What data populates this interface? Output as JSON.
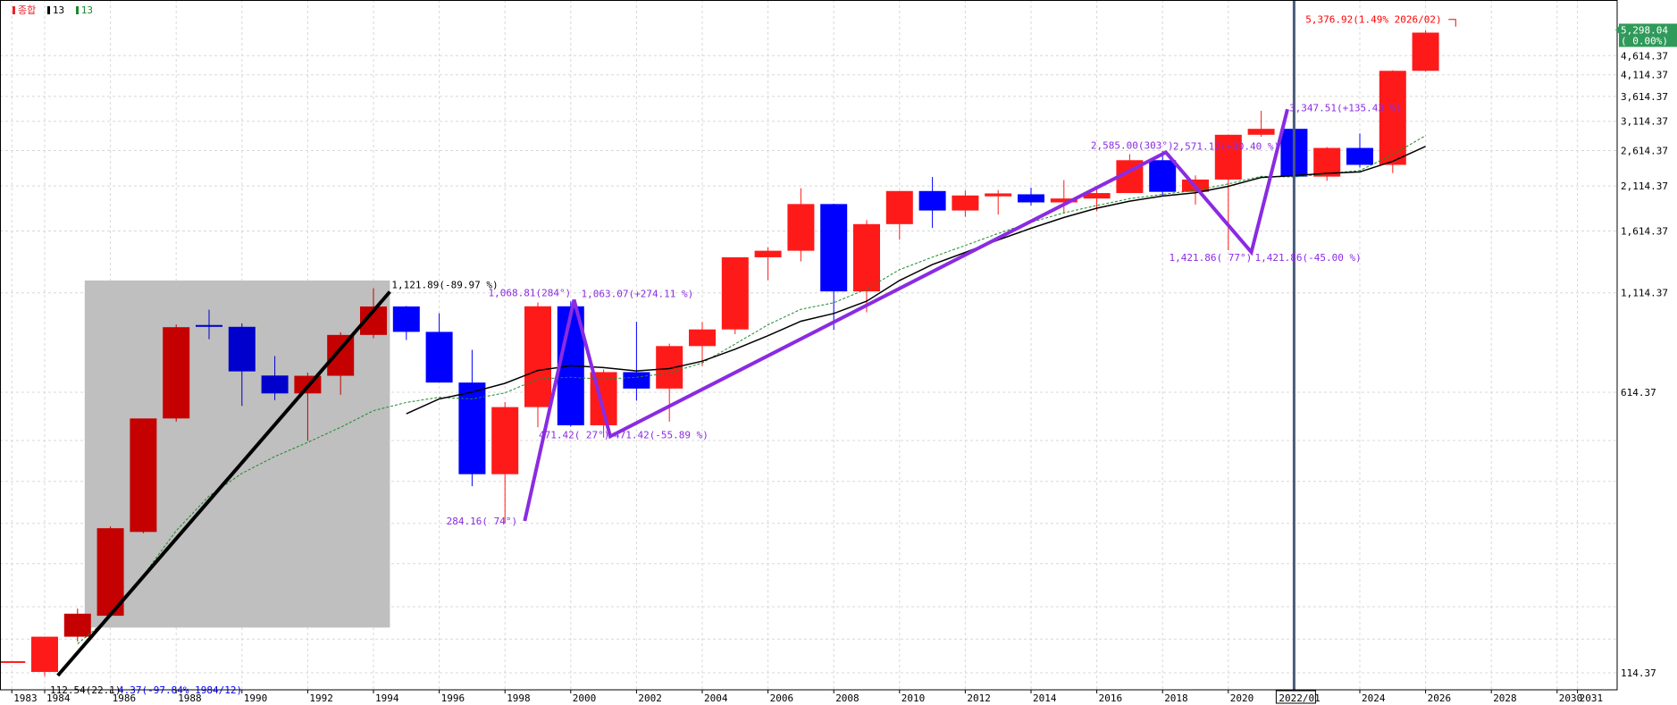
{
  "legend": {
    "title": "종합",
    "ma1": "13",
    "ma2": "13",
    "title_color": "#e8242c",
    "ma1_color": "#000000",
    "ma2_color": "#1a8a2a"
  },
  "price_box": {
    "price": "5,298.04",
    "change": "( 0.00%)",
    "bg": "#2f9a5a"
  },
  "selected_label": "2022/01",
  "colors": {
    "up": "#ff1a1a",
    "up_dark": "#c40000",
    "down": "#0000ff",
    "down_dark": "#0000cc",
    "zigzag": "#8a2be2",
    "grid": "#d8d8d8"
  },
  "annotations": [
    {
      "text": "5,376.92(1.49% 2026/02)",
      "color": "#ff0000",
      "year": 2026.1,
      "value": 5376.92
    },
    {
      "text": "1,121.89(-89.97 %)",
      "color": "#000000",
      "year": 1994.5,
      "value": 1121.89
    },
    {
      "text": "112.54(22.1)",
      "color": "#000000",
      "year": 1984.0,
      "value": 112.54
    },
    {
      "text": "4.37(-97.84% 1984/12)",
      "color": "#0000ff",
      "year": 1984.0,
      "value": 112.54
    },
    {
      "text": "1,068.81(284°)",
      "color": "#8a2be2",
      "year": 2000.1,
      "value": 1068.81
    },
    {
      "text": "1,063.07(+274.11 %)",
      "color": "#8a2be2",
      "year": 2000.1,
      "value": 1063.07
    },
    {
      "text": "471.42( 27°)",
      "color": "#8a2be2",
      "year": 2001.2,
      "value": 471.42
    },
    {
      "text": "471.42(-55.89 %)",
      "color": "#8a2be2",
      "year": 2001.2,
      "value": 471.42
    },
    {
      "text": "284.16( 74°)",
      "color": "#8a2be2",
      "year": 1998.5,
      "value": 284.16
    },
    {
      "text": "2,585.00(303°)",
      "color": "#8a2be2",
      "year": 2018.1,
      "value": 2585.0
    },
    {
      "text": "2,571.12(+80.40 %)",
      "color": "#8a2be2",
      "year": 2018.1,
      "value": 2571.12
    },
    {
      "text": "1,421.86( 77°)",
      "color": "#8a2be2",
      "year": 2020.7,
      "value": 1421.86
    },
    {
      "text": "1,421.86(-45.00 %)",
      "color": "#8a2be2",
      "year": 2020.7,
      "value": 1421.86
    },
    {
      "text": "3,347.51(+135.43 %)",
      "color": "#8a2be2",
      "year": 2021.8,
      "value": 3347.51
    }
  ],
  "chart_data": {
    "type": "candlestick",
    "title": "종합",
    "xlabel": "",
    "ylabel": "",
    "x_axis_ticks": [
      "1983",
      "1984",
      "1986",
      "1988",
      "1990",
      "1992",
      "1994",
      "1996",
      "1998",
      "2000",
      "2002",
      "2004",
      "2006",
      "2008",
      "2010",
      "2012",
      "2014",
      "2016",
      "2018",
      "2020",
      "2022/01",
      "2024",
      "2026",
      "2028",
      "2030",
      "2031"
    ],
    "y_axis_ticks": [
      114.37,
      614.37,
      1114.37,
      1614.37,
      2114.37,
      2614.37,
      3114.37,
      3614.37,
      4114.37,
      4614.37
    ],
    "ylim": [
      100,
      5500
    ],
    "y_scale": "log",
    "candles": [
      {
        "year": 1983,
        "open": 122,
        "high": 122,
        "low": 122,
        "close": 122
      },
      {
        "year": 1984,
        "open": 115,
        "high": 142,
        "low": 112,
        "close": 142
      },
      {
        "year": 1985,
        "open": 142,
        "high": 168,
        "low": 138,
        "close": 163
      },
      {
        "year": 1986,
        "open": 161,
        "high": 275,
        "low": 160,
        "close": 272
      },
      {
        "year": 1987,
        "open": 266,
        "high": 525,
        "low": 264,
        "close": 525
      },
      {
        "year": 1988,
        "open": 525,
        "high": 922,
        "low": 515,
        "close": 907
      },
      {
        "year": 1989,
        "open": 919,
        "high": 1007,
        "low": 844,
        "close": 909
      },
      {
        "year": 1990,
        "open": 909,
        "high": 928,
        "low": 566,
        "close": 696
      },
      {
        "year": 1991,
        "open": 679,
        "high": 763,
        "low": 586,
        "close": 610
      },
      {
        "year": 1992,
        "open": 610,
        "high": 691,
        "low": 459,
        "close": 678
      },
      {
        "year": 1993,
        "open": 678,
        "high": 880,
        "low": 605,
        "close": 866
      },
      {
        "year": 1994,
        "open": 866,
        "high": 1145,
        "low": 849,
        "close": 1027
      },
      {
        "year": 1995,
        "open": 1027,
        "high": 1030,
        "low": 840,
        "close": 882
      },
      {
        "year": 1996,
        "open": 882,
        "high": 986,
        "low": 651,
        "close": 651
      },
      {
        "year": 1997,
        "open": 651,
        "high": 792,
        "low": 350,
        "close": 376
      },
      {
        "year": 1998,
        "open": 376,
        "high": 579,
        "low": 280,
        "close": 562
      },
      {
        "year": 1999,
        "open": 562,
        "high": 1052,
        "low": 498,
        "close": 1028
      },
      {
        "year": 2000,
        "open": 1028,
        "high": 1059,
        "low": 500,
        "close": 504
      },
      {
        "year": 2001,
        "open": 504,
        "high": 704,
        "low": 468,
        "close": 693
      },
      {
        "year": 2002,
        "open": 693,
        "high": 937,
        "low": 584,
        "close": 628
      },
      {
        "year": 2003,
        "open": 628,
        "high": 822,
        "low": 515,
        "close": 810
      },
      {
        "year": 2004,
        "open": 810,
        "high": 936,
        "low": 719,
        "close": 895
      },
      {
        "year": 2005,
        "open": 895,
        "high": 1379,
        "low": 870,
        "close": 1379
      },
      {
        "year": 2006,
        "open": 1379,
        "high": 1464,
        "low": 1203,
        "close": 1434
      },
      {
        "year": 2007,
        "open": 1434,
        "high": 2085,
        "low": 1345,
        "close": 1897
      },
      {
        "year": 2008,
        "open": 1897,
        "high": 1901,
        "low": 892,
        "close": 1124
      },
      {
        "year": 2009,
        "open": 1124,
        "high": 1723,
        "low": 992,
        "close": 1682
      },
      {
        "year": 2010,
        "open": 1682,
        "high": 2052,
        "low": 1532,
        "close": 2051
      },
      {
        "year": 2011,
        "open": 2051,
        "high": 2231,
        "low": 1644,
        "close": 1825
      },
      {
        "year": 2012,
        "open": 1825,
        "high": 2057,
        "low": 1758,
        "close": 1997
      },
      {
        "year": 2013,
        "open": 1997,
        "high": 2063,
        "low": 1780,
        "close": 2011
      },
      {
        "year": 2014,
        "open": 2011,
        "high": 2093,
        "low": 1881,
        "close": 1916
      },
      {
        "year": 2015,
        "open": 1916,
        "high": 2189,
        "low": 1800,
        "close": 1961
      },
      {
        "year": 2016,
        "open": 1961,
        "high": 2073,
        "low": 1817,
        "close": 2026
      },
      {
        "year": 2017,
        "open": 2026,
        "high": 2557,
        "low": 2026,
        "close": 2467
      },
      {
        "year": 2018,
        "open": 2467,
        "high": 2607,
        "low": 1985,
        "close": 2041
      },
      {
        "year": 2019,
        "open": 2041,
        "high": 2252,
        "low": 1891,
        "close": 2197
      },
      {
        "year": 2020,
        "open": 2197,
        "high": 2878,
        "low": 1439,
        "close": 2873
      },
      {
        "year": 2021,
        "open": 2873,
        "high": 3316,
        "low": 2839,
        "close": 2977
      },
      {
        "year": 2022,
        "open": 2977,
        "high": 3010,
        "low": 2134,
        "close": 2236
      },
      {
        "year": 2023,
        "open": 2236,
        "high": 2668,
        "low": 2180,
        "close": 2655
      },
      {
        "year": 2024,
        "open": 2655,
        "high": 2896,
        "low": 2360,
        "close": 2399
      },
      {
        "year": 2025,
        "open": 2399,
        "high": 4226,
        "low": 2284,
        "close": 4214
      },
      {
        "year": 2026,
        "open": 4214,
        "high": 5376.92,
        "low": 4200,
        "close": 5298.04
      }
    ],
    "ma_black": [
      {
        "year": 1995,
        "value": 540
      },
      {
        "year": 1996,
        "value": 590
      },
      {
        "year": 1997,
        "value": 615
      },
      {
        "year": 1998,
        "value": 648
      },
      {
        "year": 1999,
        "value": 700
      },
      {
        "year": 2000,
        "value": 720
      },
      {
        "year": 2001,
        "value": 712
      },
      {
        "year": 2002,
        "value": 698
      },
      {
        "year": 2003,
        "value": 708
      },
      {
        "year": 2004,
        "value": 740
      },
      {
        "year": 2005,
        "value": 795
      },
      {
        "year": 2006,
        "value": 862
      },
      {
        "year": 2007,
        "value": 940
      },
      {
        "year": 2008,
        "value": 985
      },
      {
        "year": 2009,
        "value": 1060
      },
      {
        "year": 2010,
        "value": 1200
      },
      {
        "year": 2011,
        "value": 1320
      },
      {
        "year": 2012,
        "value": 1420
      },
      {
        "year": 2013,
        "value": 1530
      },
      {
        "year": 2014,
        "value": 1640
      },
      {
        "year": 2015,
        "value": 1750
      },
      {
        "year": 2016,
        "value": 1850
      },
      {
        "year": 2017,
        "value": 1930
      },
      {
        "year": 2018,
        "value": 1990
      },
      {
        "year": 2019,
        "value": 2030
      },
      {
        "year": 2020,
        "value": 2110
      },
      {
        "year": 2021,
        "value": 2225
      },
      {
        "year": 2022,
        "value": 2250
      },
      {
        "year": 2023,
        "value": 2280
      },
      {
        "year": 2024,
        "value": 2300
      },
      {
        "year": 2025,
        "value": 2450
      },
      {
        "year": 2026,
        "value": 2680
      }
    ],
    "ma_green": [
      {
        "year": 1985,
        "value": 136
      },
      {
        "year": 1986,
        "value": 160
      },
      {
        "year": 1987,
        "value": 205
      },
      {
        "year": 1988,
        "value": 268
      },
      {
        "year": 1989,
        "value": 330
      },
      {
        "year": 1990,
        "value": 378
      },
      {
        "year": 1991,
        "value": 418
      },
      {
        "year": 1992,
        "value": 455
      },
      {
        "year": 1993,
        "value": 498
      },
      {
        "year": 1994,
        "value": 550
      },
      {
        "year": 1995,
        "value": 578
      },
      {
        "year": 1996,
        "value": 596
      },
      {
        "year": 1997,
        "value": 590
      },
      {
        "year": 1998,
        "value": 612
      },
      {
        "year": 1999,
        "value": 665
      },
      {
        "year": 2000,
        "value": 672
      },
      {
        "year": 2001,
        "value": 664
      },
      {
        "year": 2002,
        "value": 672
      },
      {
        "year": 2003,
        "value": 690
      },
      {
        "year": 2004,
        "value": 732
      },
      {
        "year": 2005,
        "value": 820
      },
      {
        "year": 2006,
        "value": 920
      },
      {
        "year": 2007,
        "value": 1010
      },
      {
        "year": 2008,
        "value": 1050
      },
      {
        "year": 2009,
        "value": 1140
      },
      {
        "year": 2010,
        "value": 1280
      },
      {
        "year": 2011,
        "value": 1380
      },
      {
        "year": 2012,
        "value": 1480
      },
      {
        "year": 2013,
        "value": 1590
      },
      {
        "year": 2014,
        "value": 1700
      },
      {
        "year": 2015,
        "value": 1800
      },
      {
        "year": 2016,
        "value": 1880
      },
      {
        "year": 2017,
        "value": 1960
      },
      {
        "year": 2018,
        "value": 2010
      },
      {
        "year": 2019,
        "value": 2060
      },
      {
        "year": 2020,
        "value": 2140
      },
      {
        "year": 2021,
        "value": 2240
      },
      {
        "year": 2022,
        "value": 2230
      },
      {
        "year": 2023,
        "value": 2275
      },
      {
        "year": 2024,
        "value": 2320
      },
      {
        "year": 2025,
        "value": 2550
      },
      {
        "year": 2026,
        "value": 2860
      }
    ],
    "trend_line": [
      {
        "year": 1984.4,
        "value": 112.54
      },
      {
        "year": 1994.5,
        "value": 1121.89
      }
    ],
    "zigzag": [
      {
        "year": 1998.6,
        "value": 284.16
      },
      {
        "year": 2000.1,
        "value": 1068.81
      },
      {
        "year": 2001.2,
        "value": 471.42
      },
      {
        "year": 2018.1,
        "value": 2585.0
      },
      {
        "year": 2020.7,
        "value": 1421.86
      },
      {
        "year": 2021.8,
        "value": 3347.51
      }
    ],
    "highlight_range": {
      "year_from": 1985.0,
      "year_to": 1994.5,
      "value_from": 150,
      "value_to": 1200
    },
    "selected_year": 2022.0,
    "grid": true,
    "legend_position": "top-left"
  }
}
